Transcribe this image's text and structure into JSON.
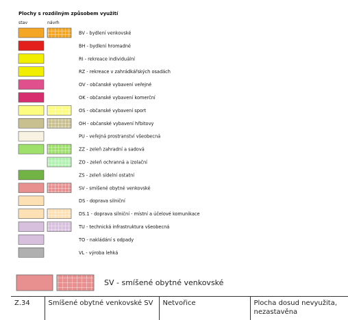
{
  "legend": {
    "title": "Plochy s rozdílným způsobem využití",
    "col_stav": "stav",
    "col_navrh": "návrh",
    "items": [
      {
        "label": "BV - bydlení venkovské",
        "stav_color": "#f5a524",
        "navrh_color": "#f5a524"
      },
      {
        "label": "BH - bydlení hromadné",
        "stav_color": "#e3201b"
      },
      {
        "label": "RI - rekreace individuální",
        "stav_color": "#f2ee00"
      },
      {
        "label": "RZ - rekreace v zahrádkářských osadách",
        "stav_color": "#f2ee00"
      },
      {
        "label": "OV - občanské vybavení veřejné",
        "stav_color": "#e0508c"
      },
      {
        "label": "OK - občanské vybavení komerční",
        "stav_color": "#d62e6e"
      },
      {
        "label": "OS - občanské vybavení sport",
        "stav_color": "#fcfc80",
        "navrh_color": "#fcfc80"
      },
      {
        "label": "OH - občanské vybavení hřbitovy",
        "stav_color": "#c9c08f",
        "navrh_color": "#c9c08f"
      },
      {
        "label": "PU - veřejná prostranství všeobecná",
        "stav_color": "#f7f2e2"
      },
      {
        "label": "ZZ - zeleň zahradní a sadová",
        "stav_color": "#9fe06c",
        "navrh_color": "#9fe06c"
      },
      {
        "label": "ZO - zeleň ochranná a izolační",
        "navrh_color": "#b2f2b0"
      },
      {
        "label": "ZS - zeleň sídelní ostatní",
        "stav_color": "#72b346"
      },
      {
        "label": "SV - smíšené obytné venkovské",
        "stav_color": "#e8908f",
        "navrh_color": "#e8908f"
      },
      {
        "label": "DS - doprava silniční",
        "stav_color": "#fde0b4"
      },
      {
        "label": "DS.1 - doprava silniční - místní a účelové komunikace",
        "stav_color": "#fde0b4",
        "navrh_color": "#fde0b4"
      },
      {
        "label": "TU - technická infrastruktura všeobecná",
        "stav_color": "#d7c0dd",
        "navrh_color": "#d7c0dd"
      },
      {
        "label": "TO - nakládání s odpady",
        "stav_color": "#d7c0dd"
      },
      {
        "label": "VL - výroba lehká",
        "stav_color": "#b0b0b0"
      }
    ]
  },
  "highlight": {
    "label": "SV - smíšené obytné venkovské",
    "stav_color": "#e8908f",
    "navrh_color": "#e8908f"
  },
  "table": {
    "rows": [
      [
        "Z.34",
        "Smíšené obytné venkovské SV",
        "Netvořice",
        "Plocha dosud nevyužita, nezastavěna"
      ]
    ]
  }
}
